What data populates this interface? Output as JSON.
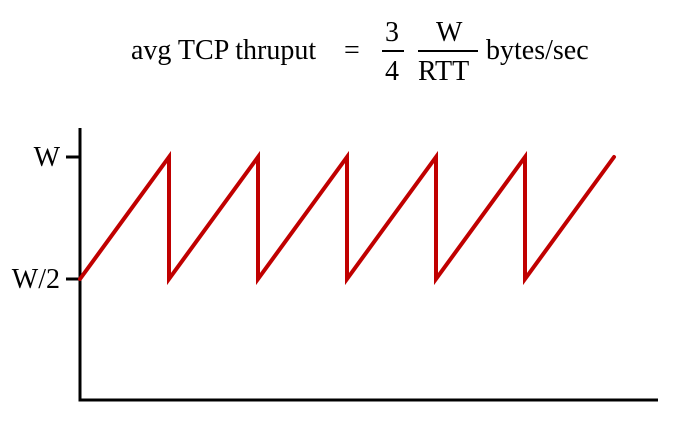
{
  "formula": {
    "lhs": "avg TCP thruput",
    "equals": "=",
    "fraction1": {
      "numerator": "3",
      "denominator": "4"
    },
    "fraction2": {
      "numerator": "W",
      "denominator": "RTT"
    },
    "units": "bytes/sec"
  },
  "axis": {
    "y_ticks": [
      {
        "label": "W",
        "value": 1
      },
      {
        "label": "W/2",
        "value": 0.5
      }
    ]
  },
  "chart_data": {
    "type": "line",
    "series": [
      {
        "color": "#c00000",
        "points": [
          [
            0.0,
            0.5
          ],
          [
            1.0,
            1.0
          ],
          [
            1.0,
            0.5
          ],
          [
            2.0,
            1.0
          ],
          [
            2.0,
            0.5
          ],
          [
            3.0,
            1.0
          ],
          [
            3.0,
            0.5
          ],
          [
            4.0,
            1.0
          ],
          [
            4.0,
            0.5
          ],
          [
            5.0,
            1.0
          ],
          [
            5.0,
            0.5
          ],
          [
            6.0,
            1.0
          ]
        ]
      }
    ],
    "ylim": [
      0,
      1
    ],
    "xlim": [
      0,
      6.4
    ]
  },
  "colors": {
    "sawtooth": "#c00000",
    "axes": "#000000"
  }
}
